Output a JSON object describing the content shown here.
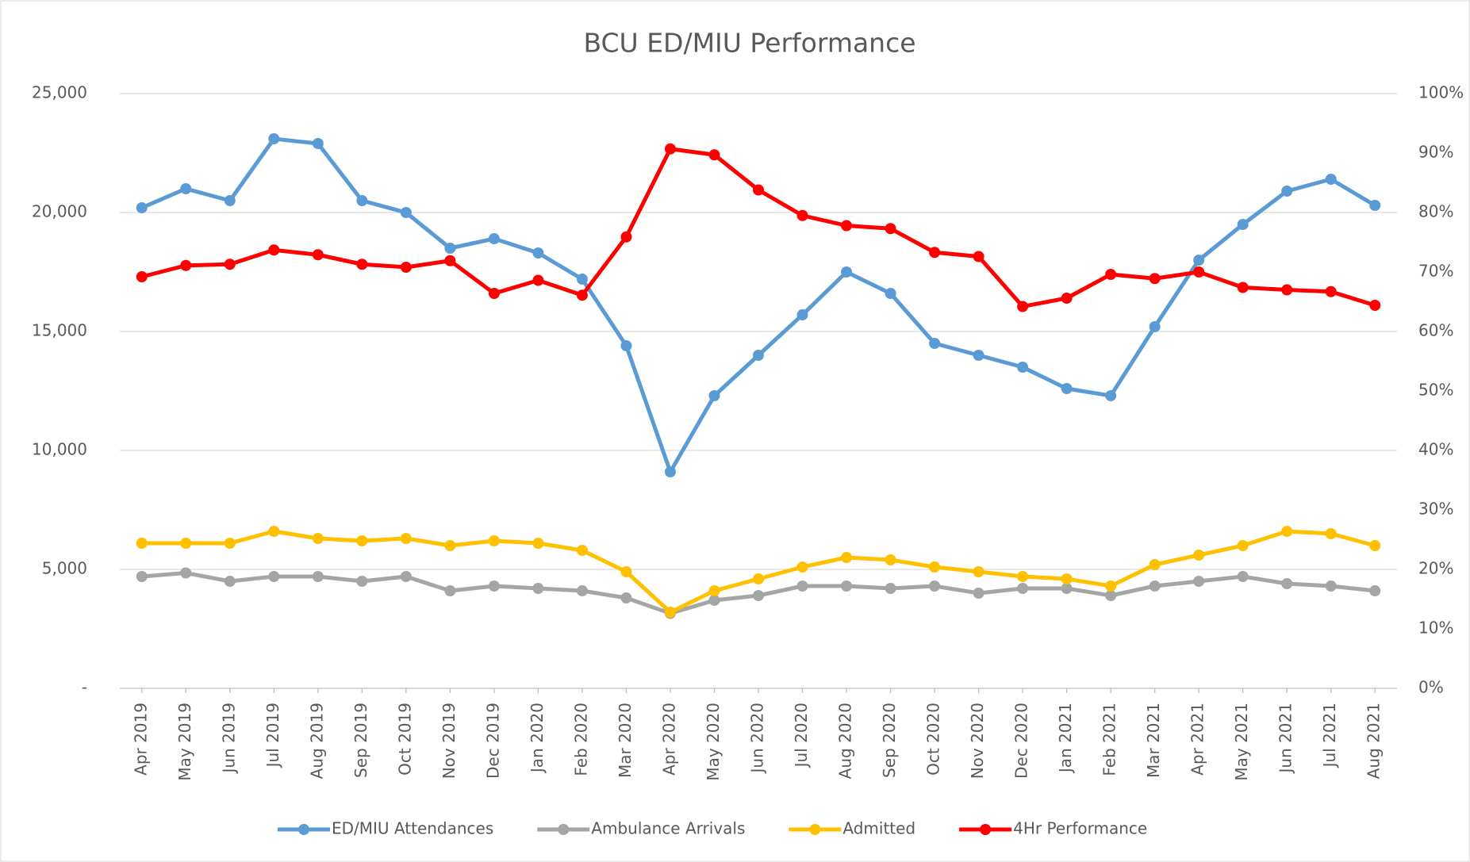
{
  "chart_data": {
    "type": "line",
    "title": "BCU ED/MIU Performance",
    "categories": [
      "Apr 2019",
      "May 2019",
      "Jun 2019",
      "Jul 2019",
      "Aug 2019",
      "Sep 2019",
      "Oct 2019",
      "Nov 2019",
      "Dec 2019",
      "Jan 2020",
      "Feb 2020",
      "Mar 2020",
      "Apr 2020",
      "May 2020",
      "Jun 2020",
      "Jul 2020",
      "Aug 2020",
      "Sep 2020",
      "Oct 2020",
      "Nov 2020",
      "Dec 2020",
      "Jan 2021",
      "Feb 2021",
      "Mar 2021",
      "Apr 2021",
      "May 2021",
      "Jun 2021",
      "Jul 2021",
      "Aug 2021"
    ],
    "series": [
      {
        "name": "ED/MIU Attendances",
        "color": "#5b9bd5",
        "values": [
          20200,
          21000,
          20500,
          23100,
          22900,
          20500,
          20000,
          18500,
          18900,
          18300,
          17200,
          14400,
          9100,
          12300,
          14000,
          15700,
          17500,
          16600,
          14500,
          14000,
          13500,
          12600,
          12300,
          15200,
          18000,
          19500,
          20900,
          21400,
          20300
        ]
      },
      {
        "name": "Ambulance Arrivals",
        "color": "#a5a5a5",
        "values": [
          4700,
          4850,
          4500,
          4700,
          4700,
          4500,
          4700,
          4100,
          4300,
          4200,
          4100,
          3800,
          3150,
          3700,
          3900,
          4300,
          4300,
          4200,
          4300,
          4000,
          4200,
          4200,
          3900,
          4300,
          4500,
          4700,
          4400,
          4300,
          4100
        ]
      },
      {
        "name": "Admitted",
        "color": "#ffc000",
        "values": [
          6100,
          6100,
          6100,
          6600,
          6300,
          6200,
          6300,
          6000,
          6200,
          6100,
          5800,
          4900,
          3200,
          4100,
          4600,
          5100,
          5500,
          5400,
          5100,
          4900,
          4700,
          4600,
          4300,
          5200,
          5600,
          6000,
          6600,
          6500,
          6000
        ]
      },
      {
        "name": "4Hr Performance",
        "color": "#ff0000",
        "axis": "y2",
        "values": [
          69.2,
          71.1,
          71.3,
          73.7,
          72.9,
          71.3,
          70.8,
          71.9,
          66.4,
          68.6,
          66.1,
          75.9,
          90.7,
          89.7,
          83.8,
          79.5,
          77.8,
          77.3,
          73.3,
          72.6,
          64.2,
          65.6,
          69.6,
          68.9,
          70.0,
          67.4,
          67.0,
          66.7,
          64.4
        ]
      }
    ],
    "ylim": [
      0,
      25000
    ],
    "yticks": [
      {
        "value": 0,
        "label": "-"
      },
      {
        "value": 5000,
        "label": "5,000"
      },
      {
        "value": 10000,
        "label": "10,000"
      },
      {
        "value": 15000,
        "label": "15,000"
      },
      {
        "value": 20000,
        "label": "20,000"
      },
      {
        "value": 25000,
        "label": "25,000"
      }
    ],
    "y2lim": [
      0,
      100
    ],
    "y2ticks": [
      {
        "value": 0,
        "label": "0%"
      },
      {
        "value": 10,
        "label": "10%"
      },
      {
        "value": 20,
        "label": "20%"
      },
      {
        "value": 30,
        "label": "30%"
      },
      {
        "value": 40,
        "label": "40%"
      },
      {
        "value": 50,
        "label": "50%"
      },
      {
        "value": 60,
        "label": "60%"
      },
      {
        "value": 70,
        "label": "70%"
      },
      {
        "value": 80,
        "label": "80%"
      },
      {
        "value": 90,
        "label": "90%"
      },
      {
        "value": 100,
        "label": "100%"
      }
    ],
    "grid": true,
    "legend": "bottom"
  }
}
